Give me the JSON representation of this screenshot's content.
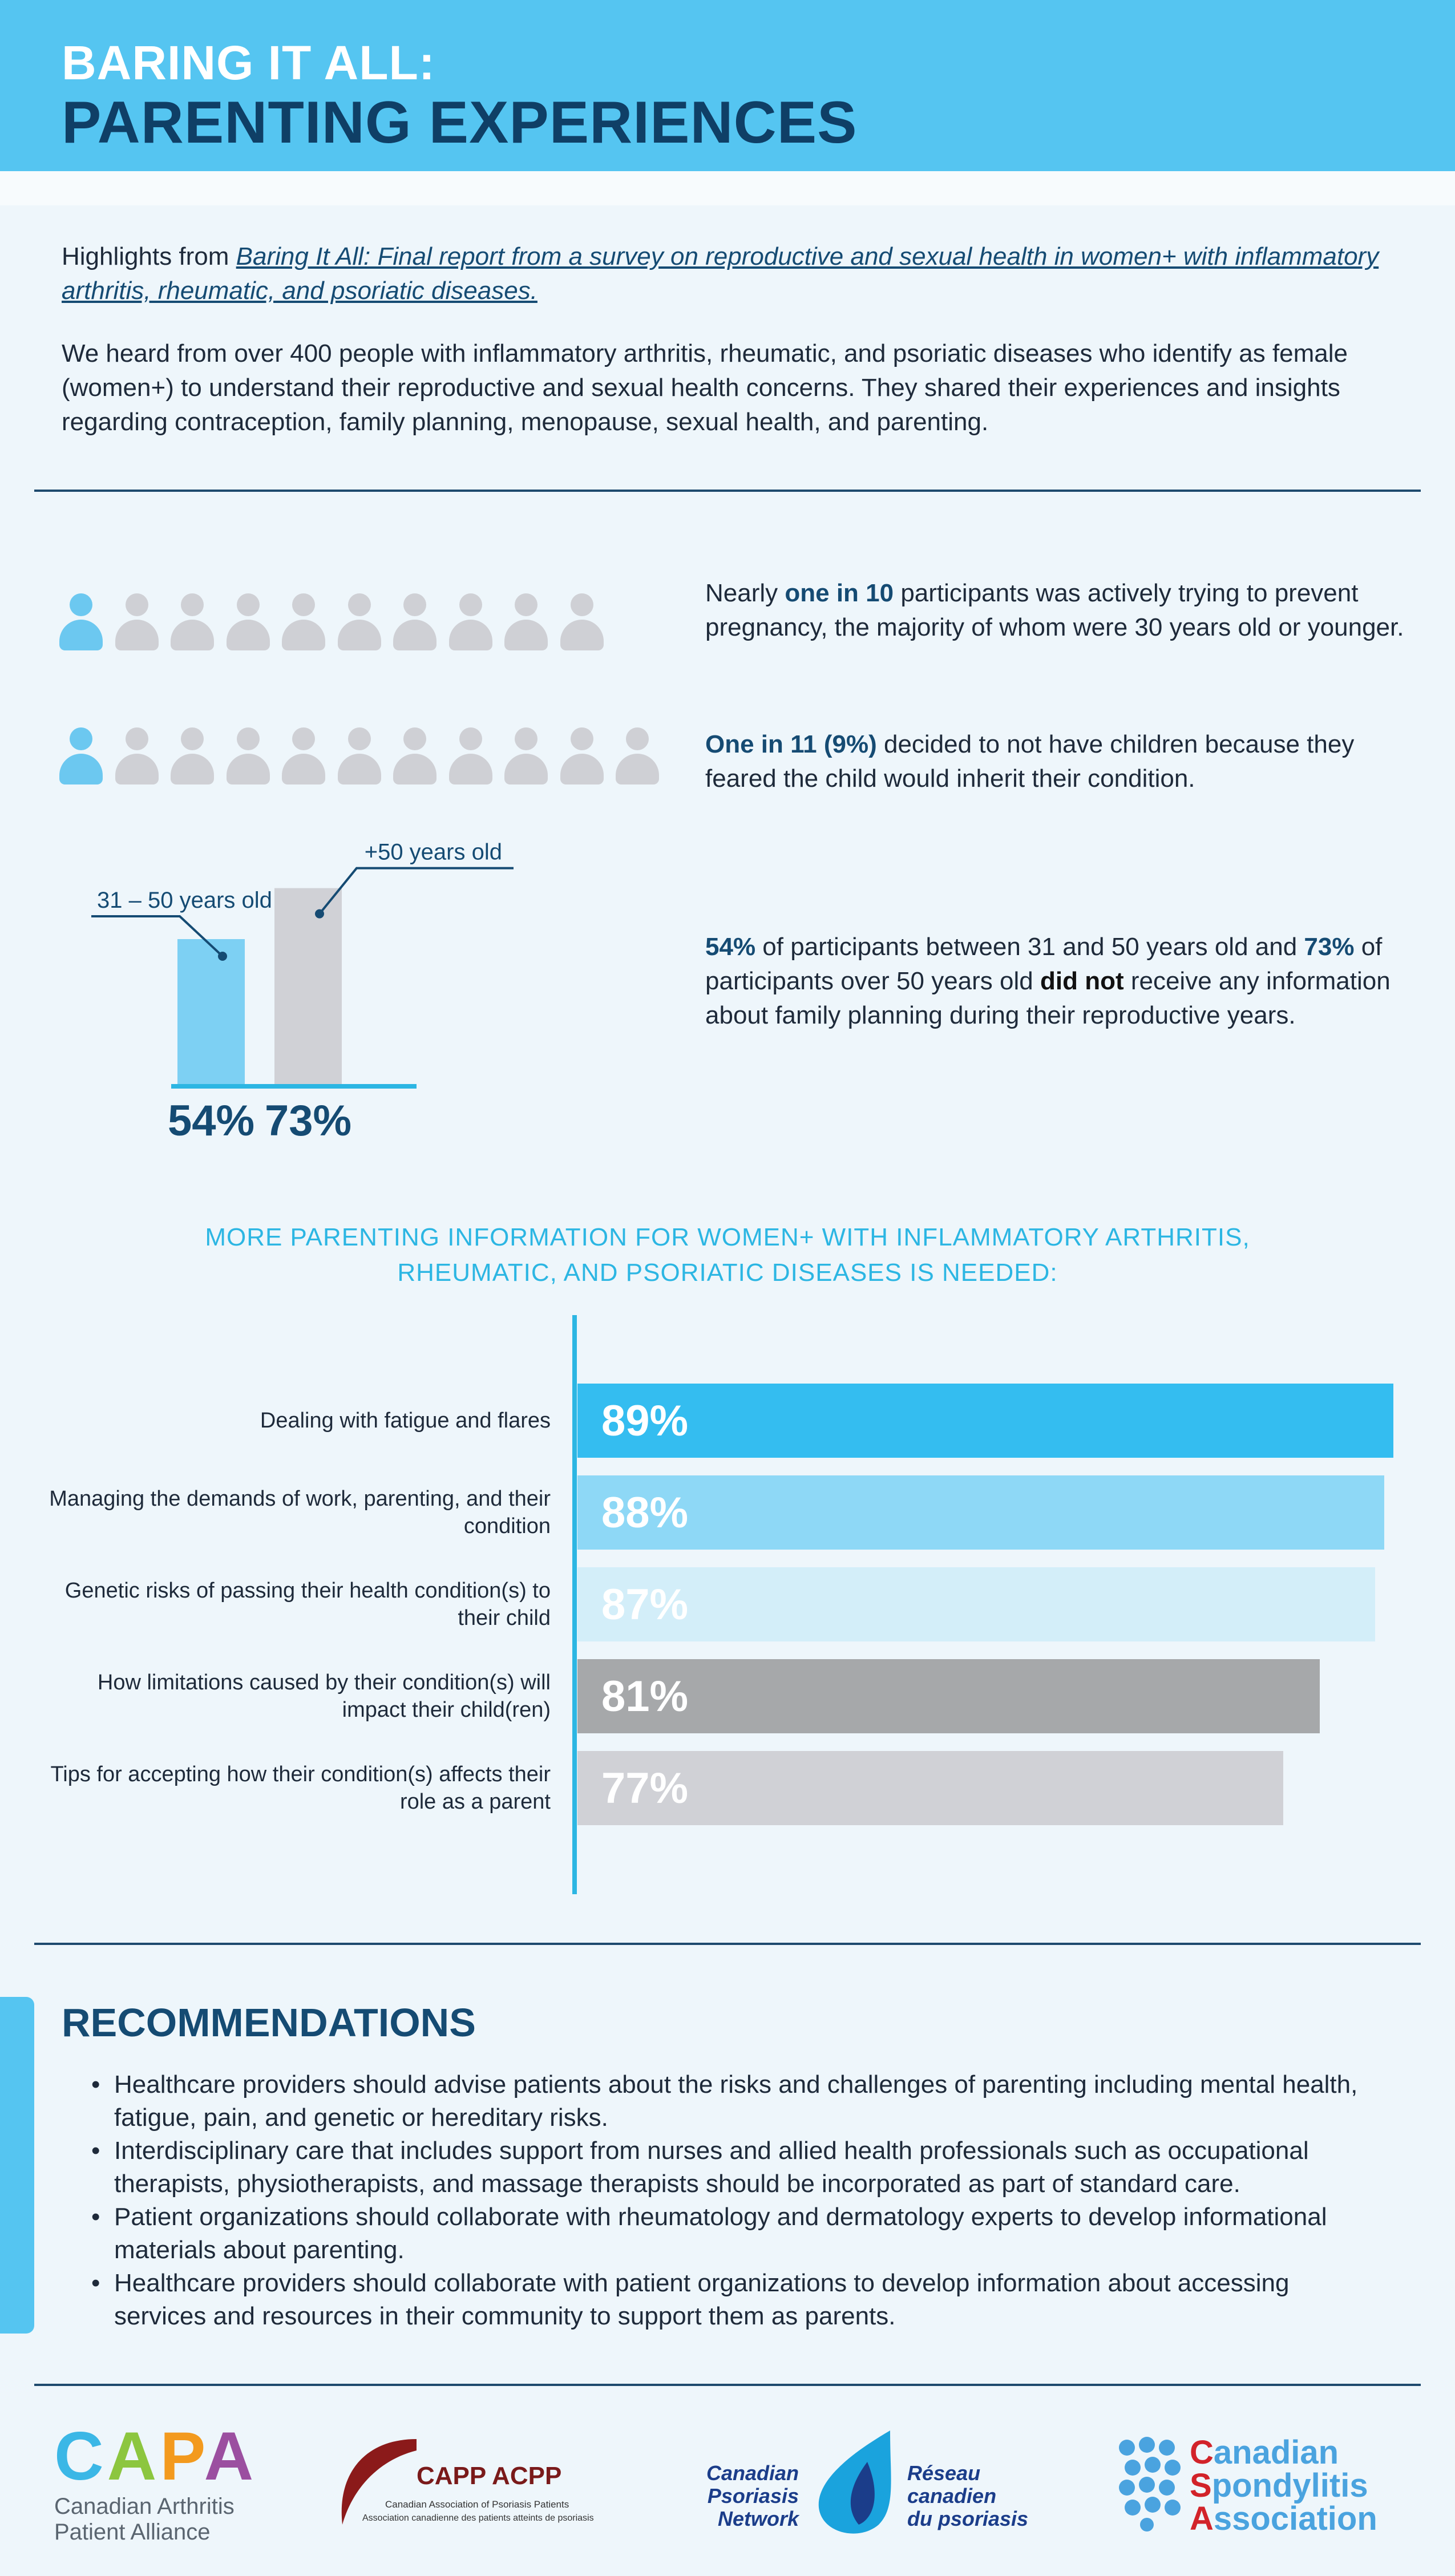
{
  "header": {
    "title_line1": "BARING IT ALL:",
    "title_line2": "PARENTING EXPERIENCES"
  },
  "intro": {
    "prefix": "Highlights from ",
    "report_link": "Baring It All: Final report from a survey on reproductive and sexual health in women+ with inflammatory arthritis, rheumatic, and psoriatic diseases.",
    "paragraph": "We heard from over 400 people with inflammatory arthritis, rheumatic, and psoriatic diseases who identify as female (women+) to understand their reproductive and sexual health concerns. They shared their experiences and insights regarding contraception, family planning, menopause, sexual health, and parenting."
  },
  "stats": {
    "stat1": {
      "pre": "Nearly ",
      "highlight": "one in 10",
      "post": " participants was actively trying to prevent pregnancy, the majority of whom were 30 years old or younger."
    },
    "stat2": {
      "highlight": "One in 11 (9%)",
      "post": " decided to not have children because they feared the child would inherit their condition."
    },
    "stat3": {
      "h1": "54%",
      "t1": " of participants between 31 and 50 years old and ",
      "h2": "73%",
      "t2": " of participants over 50 years old ",
      "bold": "did not",
      "t3": " receive any information about family planning during their reproductive years."
    }
  },
  "chart_data": [
    {
      "type": "bar",
      "categories": [
        "31 – 50 years old",
        "+50 years old"
      ],
      "values": [
        54,
        73
      ],
      "value_labels": [
        "54%",
        "73%"
      ],
      "colors": [
        "#7dd0f3",
        "#d0d1d6"
      ],
      "ylim": [
        0,
        100
      ]
    },
    {
      "type": "bar",
      "orientation": "horizontal",
      "title_line1": "MORE PARENTING INFORMATION FOR WOMEN+ WITH INFLAMMATORY ARTHRITIS,",
      "title_line2": "RHEUMATIC, AND PSORIATIC DISEASES IS NEEDED:",
      "categories": [
        "Dealing with fatigue and flares",
        "Managing the demands of work, parenting, and their condition",
        "Genetic risks of passing their health condition(s) to their child",
        "How limitations caused by their condition(s) will impact their child(ren)",
        "Tips for accepting how their condition(s) affects their role as a parent"
      ],
      "values": [
        89,
        88,
        87,
        81,
        77
      ],
      "value_labels": [
        "89%",
        "88%",
        "87%",
        "81%",
        "77%"
      ],
      "colors": [
        "#34bdf0",
        "#8ed8f6",
        "#d3eef9",
        "#a6a8aa",
        "#d0d1d6"
      ],
      "xlim": [
        0,
        89
      ]
    }
  ],
  "recommendations": {
    "title": "RECOMMENDATIONS",
    "items": [
      "Healthcare providers should advise patients about the risks and challenges of parenting including mental health, fatigue, pain, and genetic or hereditary risks.",
      "Interdisciplinary care that includes support from nurses and allied health professionals such as occupational therapists, physiotherapists, and massage therapists should be incorporated as part of standard care.",
      "Patient organizations should collaborate with rheumatology and dermatology experts to develop informational materials about parenting.",
      "Healthcare providers should collaborate with patient organizations to develop information about accessing services and resources in their community to support them as parents."
    ]
  },
  "logos": {
    "capa": {
      "mark": "CAPA",
      "line1": "Canadian Arthritis",
      "line2": "Patient Alliance"
    },
    "capp": {
      "mark": "CAPP ACPP",
      "line1": "Canadian Association of Psoriasis Patients",
      "line2": "Association canadienne des patients atteints de psoriasis"
    },
    "cpn": {
      "en1": "Canadian",
      "en2": "Psoriasis",
      "en3": "Network",
      "fr1": "Réseau",
      "fr2": "canadien",
      "fr3": "du psoriasis"
    },
    "csa": {
      "l1": "Canadian",
      "l2": "Spondylitis",
      "l3": "Association"
    }
  },
  "colors": {
    "header_bg": "#55c5f1",
    "navy": "#154b73",
    "accent_blue": "#2cb6e3"
  }
}
